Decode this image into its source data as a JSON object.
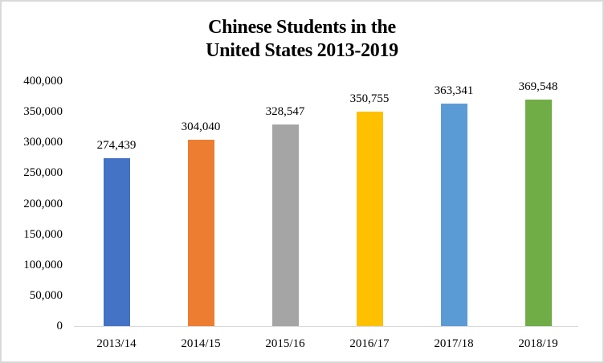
{
  "chart_data": {
    "type": "bar",
    "title": "Chinese Students in the United States 2013-2019",
    "title_lines": [
      "Chinese Students in the",
      "United States 2013-2019"
    ],
    "xlabel": "",
    "ylabel": "",
    "categories": [
      "2013/14",
      "2014/15",
      "2015/16",
      "2016/17",
      "2017/18",
      "2018/19"
    ],
    "values": [
      274439,
      304040,
      328547,
      350755,
      363341,
      369548
    ],
    "data_labels": [
      "274,439",
      "304,040",
      "328,547",
      "350,755",
      "363,341",
      "369,548"
    ],
    "colors": [
      "#4472c4",
      "#ed7d31",
      "#a5a5a5",
      "#ffc000",
      "#5b9bd5",
      "#70ad47"
    ],
    "ylim": [
      0,
      400000
    ],
    "yticks": [
      0,
      50000,
      100000,
      150000,
      200000,
      250000,
      300000,
      350000,
      400000
    ],
    "ytick_labels": [
      "0",
      "50,000",
      "100,000",
      "150,000",
      "200,000",
      "250,000",
      "300,000",
      "350,000",
      "400,000"
    ],
    "grid": false,
    "legend": null
  }
}
